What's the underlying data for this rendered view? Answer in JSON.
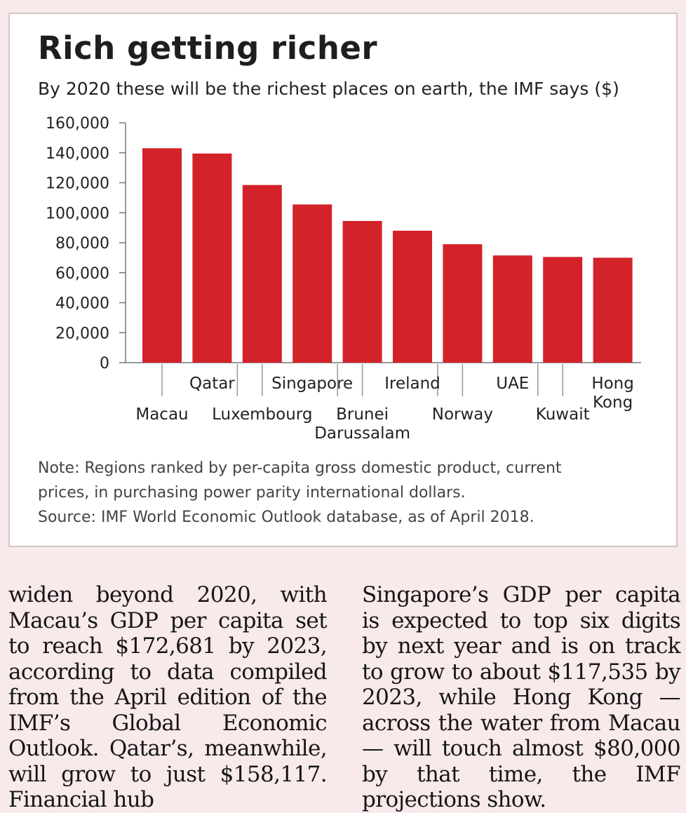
{
  "chart_data": {
    "type": "bar",
    "title": "Rich getting richer",
    "subtitle": "By 2020 these will be the richest places on earth, the IMF says ($)",
    "categories": [
      "Macau",
      "Qatar",
      "Luxembourg",
      "Singapore",
      "Brunei Darussalam",
      "Ireland",
      "Norway",
      "UAE",
      "Kuwait",
      "Hong Kong"
    ],
    "values": [
      143000,
      139500,
      118500,
      105500,
      94500,
      88000,
      79000,
      71500,
      70500,
      70000
    ],
    "ylim": [
      0,
      160000
    ],
    "yticks": [
      "0",
      "20,000",
      "40,000",
      "60,000",
      "80,000",
      "100,000",
      "120,000",
      "140,000",
      "160,000"
    ],
    "bar_color": "#d3222a",
    "grid": false
  },
  "notes": {
    "line1": "Note: Regions ranked by per-capita gross domestic product, current",
    "line2": "prices, in purchasing power parity international dollars.",
    "line3": "Source: IMF World Economic Outlook database, as of April 2018."
  },
  "article": {
    "col1": "widen beyond 2020, with Macau’s GDP per capita set to reach $172,681 by 2023, according to data compiled from the April edition of the IMF’s Global Economic Outlook. Qatar’s, meanwhile, will grow to just $158,117. Financial hub",
    "col2": "Singapore’s GDP per capita is expected to top six digits by next year and is on track to grow to about $117,535 by 2023, while Hong Kong — across the water from Macau — will touch almost $80,000 by that time, the IMF projections show."
  }
}
